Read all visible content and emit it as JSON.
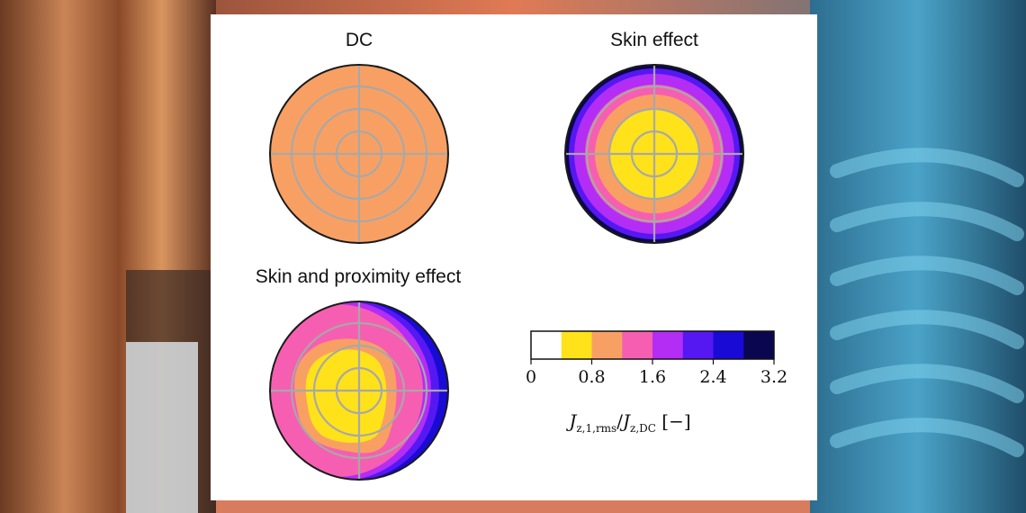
{
  "titles": {
    "dc": "DC",
    "skin": "Skin effect",
    "skin_proximity": "Skin and proximity effect"
  },
  "colorbar": {
    "colors": [
      "#ffffff",
      "#ffe21a",
      "#f8a064",
      "#f65fb1",
      "#b32df5",
      "#5618f2",
      "#1a0ad6",
      "#0b0650"
    ],
    "tick_labels": [
      "0",
      "0.8",
      "1.6",
      "2.4",
      "3.2"
    ],
    "label_main": "J",
    "label_sub1": "z,1,rms",
    "label_slash": "/",
    "label_main2": "J",
    "label_sub2": "z,DC",
    "label_unit": "[−]"
  },
  "colors": {
    "grid": "#a8a8a8",
    "outline": "#1a1a1a",
    "panel_bg": "#ffffff"
  }
}
